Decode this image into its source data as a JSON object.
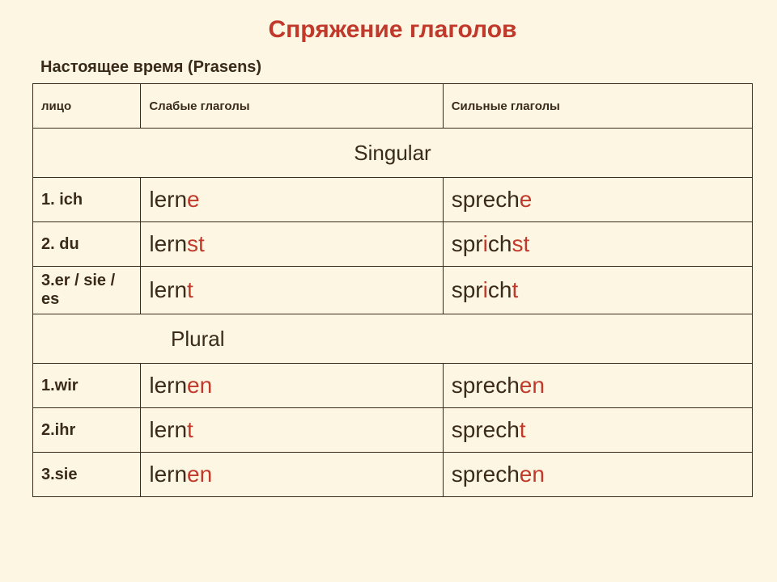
{
  "title": "Спряжение  глаголов",
  "subtitle": "Настоящее время (Prasens)",
  "colors": {
    "background": "#fdf6e3",
    "text": "#3a2a1a",
    "accent": "#c0392b",
    "border": "#3a2a1a"
  },
  "headers": {
    "person": "лицо",
    "weak": "Слабые глаголы",
    "strong": "Сильные глаголы"
  },
  "sections": {
    "singular": "Singular",
    "plural": "Plural"
  },
  "rows": {
    "s1": {
      "person": "1. ich",
      "weak": {
        "segs": [
          {
            "t": "lern",
            "hl": false
          },
          {
            "t": "e",
            "hl": true
          }
        ]
      },
      "strong": {
        "segs": [
          {
            "t": "sprech",
            "hl": false
          },
          {
            "t": "e",
            "hl": true
          }
        ]
      }
    },
    "s2": {
      "person": "2. du",
      "weak": {
        "segs": [
          {
            "t": "lern",
            "hl": false
          },
          {
            "t": "st",
            "hl": true
          }
        ]
      },
      "strong": {
        "segs": [
          {
            "t": "spr",
            "hl": false
          },
          {
            "t": "i",
            "hl": true
          },
          {
            "t": "ch",
            "hl": false
          },
          {
            "t": "st",
            "hl": true
          }
        ]
      }
    },
    "s3": {
      "person": "3.er / sie / es",
      "weak": {
        "segs": [
          {
            "t": "lern",
            "hl": false
          },
          {
            "t": "t",
            "hl": true
          }
        ]
      },
      "strong": {
        "segs": [
          {
            "t": "spr",
            "hl": false
          },
          {
            "t": "i",
            "hl": true
          },
          {
            "t": "ch",
            "hl": false
          },
          {
            "t": "t",
            "hl": true
          }
        ]
      }
    },
    "p1": {
      "person": "1.wir",
      "weak": {
        "segs": [
          {
            "t": "lern",
            "hl": false
          },
          {
            "t": "en",
            "hl": true
          }
        ]
      },
      "strong": {
        "segs": [
          {
            "t": "sprech",
            "hl": false
          },
          {
            "t": "en",
            "hl": true
          }
        ]
      }
    },
    "p2": {
      "person": "2.ihr",
      "weak": {
        "segs": [
          {
            "t": "lern",
            "hl": false
          },
          {
            "t": "t",
            "hl": true
          }
        ]
      },
      "strong": {
        "segs": [
          {
            "t": "sprech",
            "hl": false
          },
          {
            "t": "t",
            "hl": true
          }
        ]
      }
    },
    "p3": {
      "person": "3.sie",
      "weak": {
        "segs": [
          {
            "t": "lern",
            "hl": false
          },
          {
            "t": "en",
            "hl": true
          }
        ]
      },
      "strong": {
        "segs": [
          {
            "t": "sprech",
            "hl": false
          },
          {
            "t": "en",
            "hl": true
          }
        ]
      }
    }
  }
}
